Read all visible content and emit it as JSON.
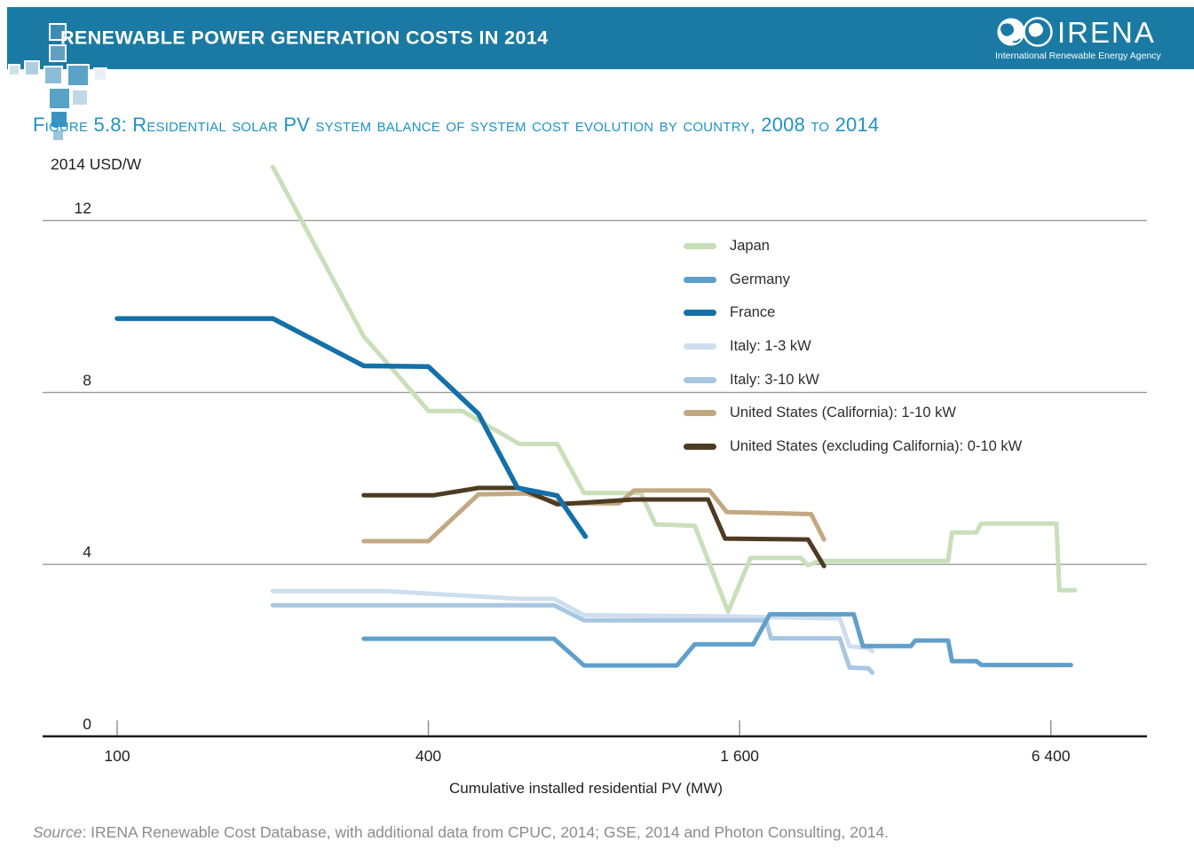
{
  "header": {
    "title": "RENEWABLE POWER GENERATION COSTS IN 2014",
    "logo_name": "IRENA",
    "logo_subtitle": "International Renewable Energy Agency"
  },
  "figure": {
    "title": "Figure 5.8: Residential solar PV system balance of system cost evolution by country, 2008 to 2014"
  },
  "source": {
    "label": "Source",
    "rest": ": IRENA Renewable Cost Database, with additional data from CPUC, 2014; GSE, 2014 and Photon Consulting, 2014."
  },
  "chart_data": {
    "type": "line",
    "title": "Residential solar PV system balance of system cost evolution by country, 2008 to 2014",
    "ylabel": "2014 USD/W",
    "xlabel": "Cumulative installed residential PV (MW)",
    "x_scale": "log",
    "xlim": [
      72,
      9800
    ],
    "ylim": [
      0,
      13.5
    ],
    "grid": "horizontal",
    "legend_position": "inside-upper-right",
    "x_ticks": [
      100,
      400,
      1600,
      6400
    ],
    "x_tick_labels": [
      "100",
      "400",
      "1 600",
      "6 400"
    ],
    "y_ticks": [
      0,
      4,
      8,
      12
    ],
    "axis_color": "#1a1a1a",
    "grid_color": "#9b9b9b",
    "series": [
      {
        "name": "Japan",
        "color": "#c8dfba",
        "points": [
          [
            200,
            13.25
          ],
          [
            300,
            9.3
          ],
          [
            335,
            8.65
          ],
          [
            400,
            7.57
          ],
          [
            465,
            7.57
          ],
          [
            600,
            6.8
          ],
          [
            710,
            6.8
          ],
          [
            800,
            5.66
          ],
          [
            1030,
            5.66
          ],
          [
            1100,
            4.93
          ],
          [
            1310,
            4.9
          ],
          [
            1520,
            2.9
          ],
          [
            1680,
            4.15
          ],
          [
            2100,
            4.15
          ],
          [
            2170,
            3.98
          ],
          [
            2280,
            4.08
          ],
          [
            4050,
            4.08
          ],
          [
            4120,
            4.74
          ],
          [
            4590,
            4.74
          ],
          [
            4690,
            4.95
          ],
          [
            6560,
            4.95
          ],
          [
            6650,
            3.4
          ],
          [
            7130,
            3.4
          ]
        ]
      },
      {
        "name": "Germany",
        "color": "#5f9fca",
        "points": [
          [
            300,
            2.27
          ],
          [
            700,
            2.27
          ],
          [
            800,
            1.65
          ],
          [
            1210,
            1.65
          ],
          [
            1310,
            2.14
          ],
          [
            1700,
            2.14
          ],
          [
            1830,
            2.84
          ],
          [
            2660,
            2.84
          ],
          [
            2770,
            2.1
          ],
          [
            3430,
            2.1
          ],
          [
            3500,
            2.23
          ],
          [
            4050,
            2.23
          ],
          [
            4120,
            1.75
          ],
          [
            4590,
            1.75
          ],
          [
            4700,
            1.66
          ],
          [
            7000,
            1.66
          ]
        ]
      },
      {
        "name": "France",
        "color": "#1470a8",
        "points": [
          [
            100,
            9.72
          ],
          [
            200,
            9.72
          ],
          [
            300,
            8.62
          ],
          [
            400,
            8.6
          ],
          [
            500,
            7.5
          ],
          [
            595,
            5.78
          ],
          [
            710,
            5.6
          ],
          [
            805,
            4.65
          ]
        ]
      },
      {
        "name": "Italy: 1-3 kW",
        "color": "#cfdeef",
        "points": [
          [
            200,
            3.38
          ],
          [
            330,
            3.38
          ],
          [
            600,
            3.2
          ],
          [
            700,
            3.2
          ],
          [
            800,
            2.82
          ],
          [
            1500,
            2.79
          ],
          [
            2500,
            2.74
          ],
          [
            2610,
            2.1
          ],
          [
            2840,
            2.05
          ],
          [
            2890,
            1.98
          ]
        ]
      },
      {
        "name": "Italy: 3-10 kW",
        "color": "#a7c6e1",
        "points": [
          [
            200,
            3.05
          ],
          [
            700,
            3.05
          ],
          [
            800,
            2.7
          ],
          [
            1800,
            2.7
          ],
          [
            1840,
            2.28
          ],
          [
            2500,
            2.28
          ],
          [
            2610,
            1.6
          ],
          [
            2840,
            1.58
          ],
          [
            2890,
            1.48
          ]
        ]
      },
      {
        "name": "United States (California): 1-10 kW",
        "color": "#c2a983",
        "points": [
          [
            300,
            4.54
          ],
          [
            400,
            4.54
          ],
          [
            500,
            5.63
          ],
          [
            620,
            5.65
          ],
          [
            720,
            5.42
          ],
          [
            935,
            5.42
          ],
          [
            1000,
            5.72
          ],
          [
            1400,
            5.72
          ],
          [
            1510,
            5.22
          ],
          [
            2200,
            5.17
          ],
          [
            2330,
            4.58
          ]
        ]
      },
      {
        "name": "United States (excluding California): 0-10 kW",
        "color": "#4d3b22",
        "points": [
          [
            300,
            5.61
          ],
          [
            410,
            5.61
          ],
          [
            500,
            5.78
          ],
          [
            600,
            5.78
          ],
          [
            710,
            5.4
          ],
          [
            1000,
            5.51
          ],
          [
            1390,
            5.51
          ],
          [
            1500,
            4.6
          ],
          [
            2170,
            4.58
          ],
          [
            2330,
            3.96
          ]
        ]
      }
    ]
  }
}
